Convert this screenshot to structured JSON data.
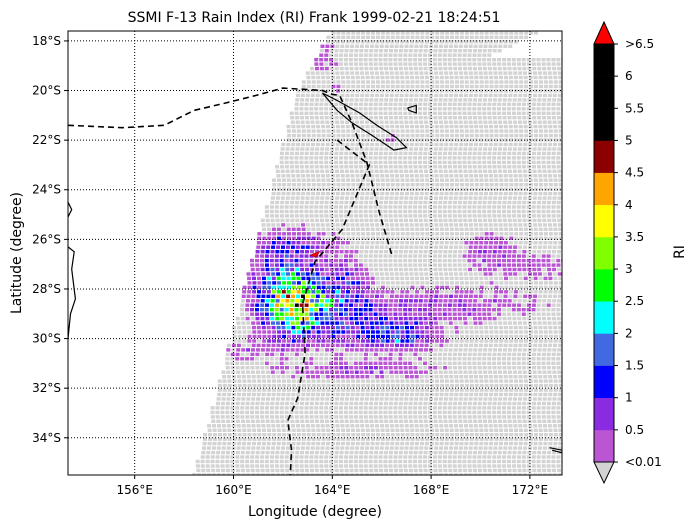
{
  "chart_data": {
    "type": "heatmap",
    "title": "SSMI F-13 Rain Index (RI) Frank 1999-02-21 18:24:51",
    "xlabel": "Longitude (degree)",
    "ylabel": "Latitude (degree)",
    "xlim": [
      153.3,
      173.3
    ],
    "ylim": [
      -35.5,
      -17.6
    ],
    "x_ticks": [
      {
        "value": 156,
        "label": "156°E"
      },
      {
        "value": 160,
        "label": "160°E"
      },
      {
        "value": 164,
        "label": "164°E"
      },
      {
        "value": 168,
        "label": "168°E"
      },
      {
        "value": 172,
        "label": "172°E"
      }
    ],
    "y_ticks": [
      {
        "value": -18,
        "label": "18°S"
      },
      {
        "value": -20,
        "label": "20°S"
      },
      {
        "value": -22,
        "label": "22°S"
      },
      {
        "value": -24,
        "label": "24°S"
      },
      {
        "value": -26,
        "label": "26°S"
      },
      {
        "value": -28,
        "label": "28°S"
      },
      {
        "value": -30,
        "label": "30°S"
      },
      {
        "value": -32,
        "label": "32°S"
      },
      {
        "value": -34,
        "label": "34°S"
      }
    ],
    "grid": true,
    "colorbar": {
      "label": "RI",
      "tick_labels": [
        "<0.01",
        "0.5",
        "1",
        "1.5",
        "2",
        "2.5",
        "3",
        "3.5",
        "4",
        "4.5",
        "5",
        "5.5",
        "6",
        ">6.5"
      ],
      "under_color": "#d3d3d3",
      "over_color": "#ff0000",
      "colors": [
        "#ba55d3",
        "#8a2be2",
        "#0000ff",
        "#4169e1",
        "#00ffff",
        "#00ff00",
        "#7fff00",
        "#ffff00",
        "#ffa500",
        "#8b0000",
        "#000000",
        "#000000",
        "#000000"
      ]
    },
    "storm": {
      "track_lon": [
        153.3,
        155.5,
        157.2,
        158.4,
        159.7,
        160.9,
        162.0,
        163.6,
        164.0,
        164.3,
        164.8,
        165.4,
        165.9,
        166.4
      ],
      "track_lat": [
        -21.4,
        -21.5,
        -21.4,
        -20.8,
        -20.5,
        -20.2,
        -19.9,
        -20.0,
        -20.15,
        -20.2,
        -21.3,
        -22.9,
        -24.9,
        -26.6
      ],
      "track2_lon": [
        164.2,
        165.5,
        164.4,
        163.3,
        162.8,
        162.9,
        162.6,
        162.2,
        162.35,
        162.3
      ],
      "track2_lat": [
        -22.0,
        -23.0,
        -25.6,
        -26.9,
        -28.6,
        -30.6,
        -32.4,
        -33.3,
        -34.5,
        -35.5
      ],
      "marker": {
        "lon": 163.3,
        "lat": -26.6
      }
    }
  }
}
